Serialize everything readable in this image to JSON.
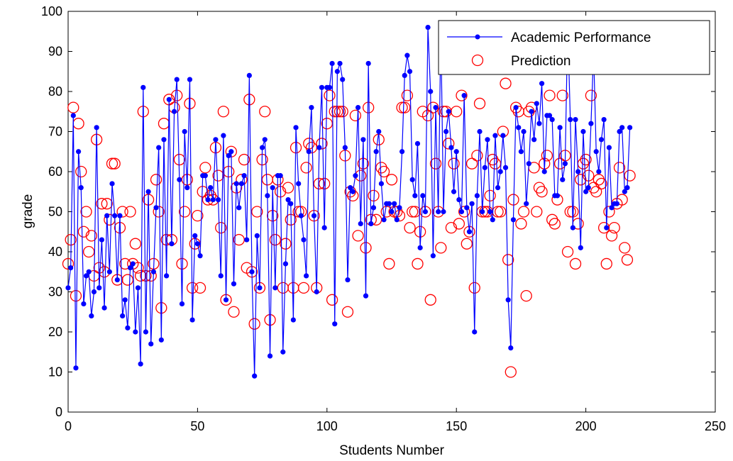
{
  "chart_data": {
    "type": "line",
    "title": "",
    "xlabel": "Students Number",
    "ylabel": "grade",
    "xlim": [
      0,
      250
    ],
    "ylim": [
      0,
      100
    ],
    "xticks": [
      0,
      50,
      100,
      150,
      200,
      250
    ],
    "yticks": [
      0,
      10,
      20,
      30,
      40,
      50,
      60,
      70,
      80,
      90,
      100
    ],
    "grid": false,
    "legend_position": "top-right",
    "series": [
      {
        "name": "Academic Performance",
        "style": "line-with-dot-markers",
        "color": "#0000ff",
        "x": [
          0,
          1,
          2,
          3,
          4,
          5,
          6,
          7,
          8,
          9,
          10,
          11,
          12,
          13,
          14,
          15,
          16,
          17,
          18,
          19,
          20,
          21,
          22,
          23,
          24,
          25,
          26,
          27,
          28,
          29,
          30,
          31,
          32,
          33,
          34,
          35,
          36,
          37,
          38,
          39,
          40,
          41,
          42,
          43,
          44,
          45,
          46,
          47,
          48,
          49,
          50,
          51,
          52,
          53,
          54,
          55,
          56,
          57,
          58,
          59,
          60,
          61,
          62,
          63,
          64,
          65,
          66,
          67,
          68,
          69,
          70,
          71,
          72,
          73,
          74,
          75,
          76,
          77,
          78,
          79,
          80,
          81,
          82,
          83,
          84,
          85,
          86,
          87,
          88,
          89,
          90,
          91,
          92,
          93,
          94,
          95,
          96,
          97,
          98,
          99,
          100,
          101,
          102,
          103,
          104,
          105,
          106,
          107,
          108,
          109,
          110,
          111,
          112,
          113,
          114,
          115,
          116,
          117,
          118,
          119,
          120,
          121,
          122,
          123,
          124,
          125,
          126,
          127,
          128,
          129,
          130,
          131,
          132,
          133,
          134,
          135,
          136,
          137,
          138,
          139,
          140,
          141,
          142,
          143,
          144,
          145,
          146,
          147,
          148,
          149,
          150,
          151,
          152,
          153,
          154,
          155,
          156,
          157,
          158,
          159,
          160,
          161,
          162,
          163,
          164,
          165,
          166,
          167,
          168,
          169,
          170,
          171,
          172,
          173,
          174,
          175,
          176,
          177,
          178,
          179,
          180,
          181,
          182,
          183,
          184,
          185,
          186,
          187,
          188,
          189,
          190,
          191,
          192,
          193,
          194,
          195,
          196,
          197,
          198,
          199,
          200,
          201,
          202,
          203,
          204,
          205,
          206,
          207,
          208,
          209,
          210,
          211,
          212,
          213,
          214,
          215,
          216,
          217
        ],
        "values": [
          31,
          36,
          74,
          11,
          65,
          56,
          27,
          34,
          35,
          24,
          30,
          71,
          31,
          43,
          26,
          49,
          35,
          57,
          49,
          33,
          49,
          24,
          28,
          21,
          36,
          37,
          20,
          31,
          12,
          81,
          20,
          55,
          17,
          35,
          51,
          66,
          18,
          68,
          34,
          78,
          42,
          75,
          83,
          58,
          27,
          70,
          56,
          83,
          23,
          44,
          42,
          39,
          59,
          59,
          53,
          56,
          53,
          68,
          53,
          34,
          69,
          28,
          64,
          65,
          32,
          57,
          51,
          57,
          59,
          43,
          84,
          35,
          9,
          44,
          31,
          66,
          68,
          54,
          14,
          56,
          31,
          59,
          59,
          15,
          37,
          53,
          52,
          23,
          71,
          57,
          49,
          43,
          34,
          65,
          76,
          49,
          30,
          66,
          81,
          46,
          81,
          81,
          87,
          22,
          85,
          87,
          83,
          66,
          33,
          56,
          55,
          59,
          76,
          47,
          68,
          29,
          87,
          47,
          51,
          65,
          70,
          57,
          48,
          52,
          52,
          50,
          52,
          48,
          51,
          65,
          84,
          89,
          85,
          58,
          54,
          67,
          41,
          54,
          50,
          96,
          80,
          39,
          76,
          50,
          96,
          50,
          70,
          75,
          66,
          55,
          65,
          53,
          50,
          79,
          51,
          45,
          52,
          20,
          54,
          70,
          50,
          61,
          68,
          50,
          48,
          69,
          56,
          60,
          69,
          61,
          28,
          16,
          48,
          76,
          71,
          65,
          70,
          52,
          62,
          75,
          68,
          77,
          72,
          82,
          60,
          74,
          74,
          73,
          54,
          54,
          71,
          58,
          62,
          97,
          73,
          46,
          73,
          60,
          41,
          70,
          55,
          56,
          72,
          90,
          65,
          60,
          68,
          73,
          46,
          66,
          51,
          52,
          52,
          70,
          71,
          55,
          56,
          71
        ]
      },
      {
        "name": "Prediction",
        "style": "circle-markers",
        "color": "#ff0000",
        "x": [
          0,
          1,
          2,
          3,
          4,
          5,
          6,
          7,
          8,
          9,
          10,
          11,
          12,
          13,
          14,
          15,
          16,
          17,
          18,
          19,
          20,
          21,
          22,
          23,
          24,
          25,
          26,
          27,
          28,
          29,
          30,
          31,
          32,
          33,
          34,
          35,
          36,
          37,
          38,
          39,
          40,
          41,
          42,
          43,
          44,
          45,
          46,
          47,
          48,
          49,
          50,
          51,
          52,
          53,
          54,
          55,
          56,
          57,
          58,
          59,
          60,
          61,
          62,
          63,
          64,
          65,
          66,
          67,
          68,
          69,
          70,
          71,
          72,
          73,
          74,
          75,
          76,
          77,
          78,
          79,
          80,
          81,
          82,
          83,
          84,
          85,
          86,
          87,
          88,
          89,
          90,
          91,
          92,
          93,
          94,
          95,
          96,
          97,
          98,
          99,
          100,
          101,
          102,
          103,
          104,
          105,
          106,
          107,
          108,
          109,
          110,
          111,
          112,
          113,
          114,
          115,
          116,
          117,
          118,
          119,
          120,
          121,
          122,
          123,
          124,
          125,
          126,
          127,
          128,
          129,
          130,
          131,
          132,
          133,
          134,
          135,
          136,
          137,
          138,
          139,
          140,
          141,
          142,
          143,
          144,
          145,
          146,
          147,
          148,
          149,
          150,
          151,
          152,
          153,
          154,
          155,
          156,
          157,
          158,
          159,
          160,
          161,
          162,
          163,
          164,
          165,
          166,
          167,
          168,
          169,
          170,
          171,
          172,
          173,
          174,
          175,
          176,
          177,
          178,
          179,
          180,
          181,
          182,
          183,
          184,
          185,
          186,
          187,
          188,
          189,
          190,
          191,
          192,
          193,
          194,
          195,
          196,
          197,
          198,
          199,
          200,
          201,
          202,
          203,
          204,
          205,
          206,
          207,
          208,
          209,
          210,
          211,
          212,
          213,
          214,
          215,
          216,
          217
        ],
        "values": [
          37,
          43,
          76,
          29,
          72,
          60,
          45,
          50,
          40,
          44,
          34,
          68,
          36,
          52,
          35,
          52,
          48,
          62,
          62,
          33,
          46,
          50,
          37,
          33,
          50,
          37,
          42,
          36,
          34,
          75,
          34,
          53,
          34,
          37,
          58,
          50,
          26,
          72,
          43,
          78,
          43,
          76,
          79,
          63,
          37,
          50,
          58,
          77,
          31,
          42,
          49,
          31,
          55,
          61,
          53,
          54,
          53,
          66,
          59,
          46,
          75,
          28,
          60,
          65,
          25,
          56,
          43,
          58,
          63,
          36,
          78,
          35,
          22,
          50,
          31,
          63,
          75,
          58,
          23,
          49,
          43,
          58,
          55,
          31,
          42,
          56,
          48,
          31,
          66,
          50,
          50,
          31,
          61,
          67,
          66,
          49,
          31,
          57,
          67,
          57,
          72,
          79,
          28,
          75,
          75,
          75,
          75,
          64,
          25,
          55,
          54,
          74,
          44,
          59,
          62,
          41,
          76,
          48,
          54,
          48,
          68,
          61,
          60,
          50,
          37,
          58,
          50,
          50,
          49,
          76,
          76,
          79,
          46,
          50,
          50,
          37,
          45,
          75,
          50,
          74,
          28,
          76,
          62,
          50,
          41,
          75,
          75,
          67,
          46,
          62,
          75,
          47,
          79,
          50,
          42,
          45,
          62,
          31,
          64,
          77,
          50,
          50,
          50,
          54,
          63,
          62,
          50,
          50,
          70,
          82,
          38,
          10,
          53,
          76,
          75,
          47,
          50,
          29,
          75,
          76,
          61,
          50,
          56,
          55,
          62,
          64,
          79,
          48,
          47,
          53,
          62,
          79,
          64,
          40,
          50,
          50,
          37,
          47,
          58,
          62,
          63,
          59,
          79,
          56,
          55,
          58,
          57,
          46,
          37,
          50,
          44,
          46,
          52,
          61,
          53,
          41,
          38,
          59
        ]
      }
    ]
  }
}
